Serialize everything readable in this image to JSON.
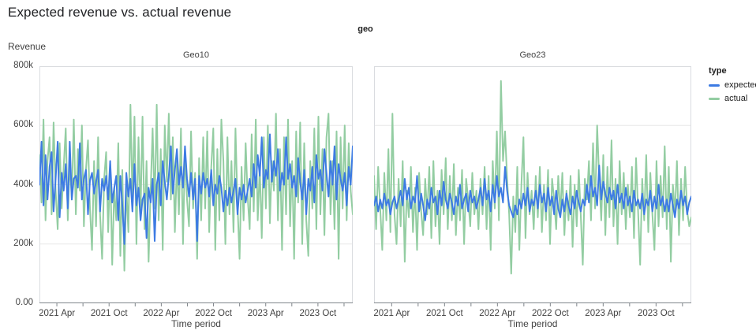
{
  "title": "Expected revenue vs. actual revenue",
  "facet_header": "geo",
  "y_axis_title": "Revenue",
  "x_axis_title": "Time period",
  "legend": {
    "title": "type",
    "items": [
      {
        "label": "expected",
        "color": "#3d7be3"
      },
      {
        "label": "actual",
        "color": "#93cda2"
      }
    ]
  },
  "chart_data": {
    "type": "line",
    "title": "Expected revenue vs. actual revenue",
    "facet_field": "geo",
    "xlabel": "Time period",
    "ylabel": "Revenue",
    "unit": "values are revenue in thousands (k)",
    "x_resolution": "weekly points, early 2021 through late 2023 (156 points per series)",
    "ylim": [
      0,
      800
    ],
    "grid": true,
    "legend_position": "right",
    "y_tick_values": [
      800,
      600,
      400,
      200,
      0
    ],
    "y_tick_labels": [
      "800k",
      "600k",
      "400k",
      "200k",
      "0.00"
    ],
    "x_tick_labels": [
      "2021 Apr",
      "2021 Oct",
      "2022 Apr",
      "2022 Oct",
      "2023 Apr",
      "2023 Oct"
    ],
    "panels": [
      {
        "title": "Geo10",
        "series": [
          {
            "name": "expected",
            "values": [
              400,
              545,
              330,
              500,
              350,
              460,
              510,
              310,
              420,
              545,
              290,
              440,
              380,
              470,
              320,
              545,
              350,
              420,
              430,
              390,
              540,
              350,
              420,
              450,
              300,
              415,
              440,
              370,
              410,
              450,
              310,
              420,
              380,
              430,
              350,
              480,
              340,
              390,
              430,
              280,
              430,
              330,
              200,
              440,
              360,
              420,
              310,
              470,
              330,
              390,
              280,
              350,
              370,
              220,
              390,
              340,
              420,
              210,
              400,
              440,
              330,
              480,
              410,
              350,
              430,
              530,
              370,
              450,
              520,
              400,
              460,
              390,
              530,
              420,
              360,
              440,
              350,
              420,
              210,
              430,
              370,
              440,
              390,
              420,
              360,
              450,
              330,
              400,
              370,
              430,
              390,
              310,
              380,
              330,
              390,
              340,
              380,
              420,
              300,
              390,
              350,
              400,
              340,
              380,
              420,
              360,
              470,
              390,
              500,
              430,
              560,
              390,
              450,
              420,
              570,
              410,
              480,
              430,
              520,
              380,
              440,
              400,
              560,
              420,
              470,
              390,
              430,
              360,
              490,
              410,
              350,
              450,
              300,
              420,
              380,
              460,
              340,
              500,
              420,
              450,
              380,
              520,
              440,
              360,
              480,
              400,
              530,
              350,
              470,
              420,
              380,
              440,
              330,
              460,
              400,
              530
            ]
          },
          {
            "name": "actual",
            "values": [
              500,
              340,
              620,
              280,
              480,
              560,
              300,
              610,
              380,
              250,
              540,
              320,
              460,
              590,
              280,
              480,
              350,
              620,
              300,
              520,
              380,
              600,
              260,
              450,
              550,
              320,
              180,
              480,
              260,
              560,
              300,
              150,
              420,
              510,
              240,
              470,
              130,
              390,
              280,
              540,
              160,
              450,
              110,
              390,
              240,
              670,
              350,
              630,
              200,
              560,
              300,
              630,
              250,
              480,
              140,
              380,
              590,
              320,
              670,
              280,
              520,
              180,
              600,
              410,
              640,
              350,
              560,
              240,
              480,
              300,
              590,
              200,
              520,
              350,
              260,
              580,
              320,
              440,
              150,
              490,
              280,
              560,
              320,
              580,
              240,
              460,
              590,
              180,
              520,
              280,
              620,
              480,
              200,
              560,
              300,
              480,
              240,
              590,
              330,
              150,
              460,
              280,
              540,
              360,
              250,
              570,
              310,
              620,
              280,
              460,
              220,
              560,
              320,
              600,
              270,
              480,
              380,
              640,
              280,
              520,
              180,
              560,
              300,
              620,
              260,
              480,
              150,
              580,
              340,
              610,
              200,
              540,
              280,
              160,
              480,
              320,
              590,
              250,
              630,
              300,
              520,
              230,
              560,
              640,
              300,
              480,
              250,
              580,
              150,
              560,
              320,
              600,
              280,
              540,
              380,
              300
            ]
          }
        ]
      },
      {
        "title": "Geo23",
        "series": [
          {
            "name": "expected",
            "values": [
              330,
              360,
              310,
              350,
              320,
              370,
              330,
              350,
              300,
              340,
              360,
              320,
              350,
              380,
              330,
              420,
              350,
              390,
              320,
              360,
              340,
              430,
              310,
              370,
              330,
              280,
              350,
              320,
              390,
              340,
              360,
              300,
              380,
              330,
              410,
              350,
              320,
              370,
              340,
              300,
              360,
              330,
              400,
              320,
              350,
              370,
              310,
              380,
              340,
              360,
              320,
              350,
              390,
              330,
              420,
              350,
              380,
              310,
              400,
              340,
              430,
              360,
              390,
              340,
              460,
              380,
              330,
              310,
              290,
              330,
              300,
              350,
              320,
              370,
              330,
              390,
              310,
              350,
              330,
              380,
              320,
              400,
              340,
              370,
              310,
              390,
              330,
              360,
              300,
              380,
              320,
              290,
              350,
              310,
              370,
              330,
              300,
              360,
              320,
              380,
              340,
              310,
              350,
              330,
              400,
              340,
              430,
              360,
              390,
              330,
              465,
              350,
              410,
              370,
              340,
              390,
              350,
              380,
              320,
              400,
              340,
              370,
              320,
              390,
              330,
              360,
              310,
              380,
              330,
              350,
              320,
              370,
              300,
              350,
              330,
              380,
              310,
              360,
              320,
              400,
              330,
              360,
              310,
              350,
              310,
              370,
              330,
              290,
              350,
              320,
              380,
              330,
              360,
              300,
              340,
              360
            ]
          },
          {
            "name": "actual",
            "values": [
              430,
              250,
              460,
              320,
              180,
              440,
              280,
              520,
              240,
              640,
              300,
              200,
              420,
              260,
              480,
              140,
              380,
              290,
              460,
              240,
              390,
              180,
              440,
              310,
              230,
              420,
              300,
              460,
              220,
              480,
              260,
              380,
              200,
              450,
              300,
              490,
              250,
              430,
              280,
              470,
              230,
              390,
              280,
              450,
              200,
              420,
              350,
              260,
              440,
              300,
              380,
              250,
              420,
              300,
              460,
              250,
              430,
              180,
              480,
              320,
              580,
              280,
              750,
              480,
              580,
              420,
              300,
              100,
              360,
              240,
              460,
              180,
              400,
              560,
              220,
              440,
              300,
              380,
              250,
              430,
              290,
              460,
              240,
              400,
              280,
              450,
              200,
              420,
              350,
              250,
              430,
              300,
              440,
              230,
              380,
              280,
              430,
              190,
              400,
              260,
              450,
              300,
              130,
              420,
              350,
              480,
              280,
              540,
              320,
              600,
              420,
              280,
              500,
              230,
              460,
              290,
              550,
              260,
              420,
              200,
              480,
              300,
              440,
              250,
              400,
              290,
              460,
              220,
              490,
              310,
              130,
              420,
              280,
              500,
              240,
              440,
              300,
              180,
              480,
              260,
              430,
              290,
              530,
              250,
              460,
              140,
              400,
              300,
              480,
              230,
              420,
              280,
              460,
              310,
              260,
              290
            ]
          }
        ]
      }
    ],
    "style": {
      "grid_color": "#e8e8e8",
      "border_color": "#dadce0",
      "axis_color": "#80868b",
      "tick_label_color": "#424242"
    }
  }
}
